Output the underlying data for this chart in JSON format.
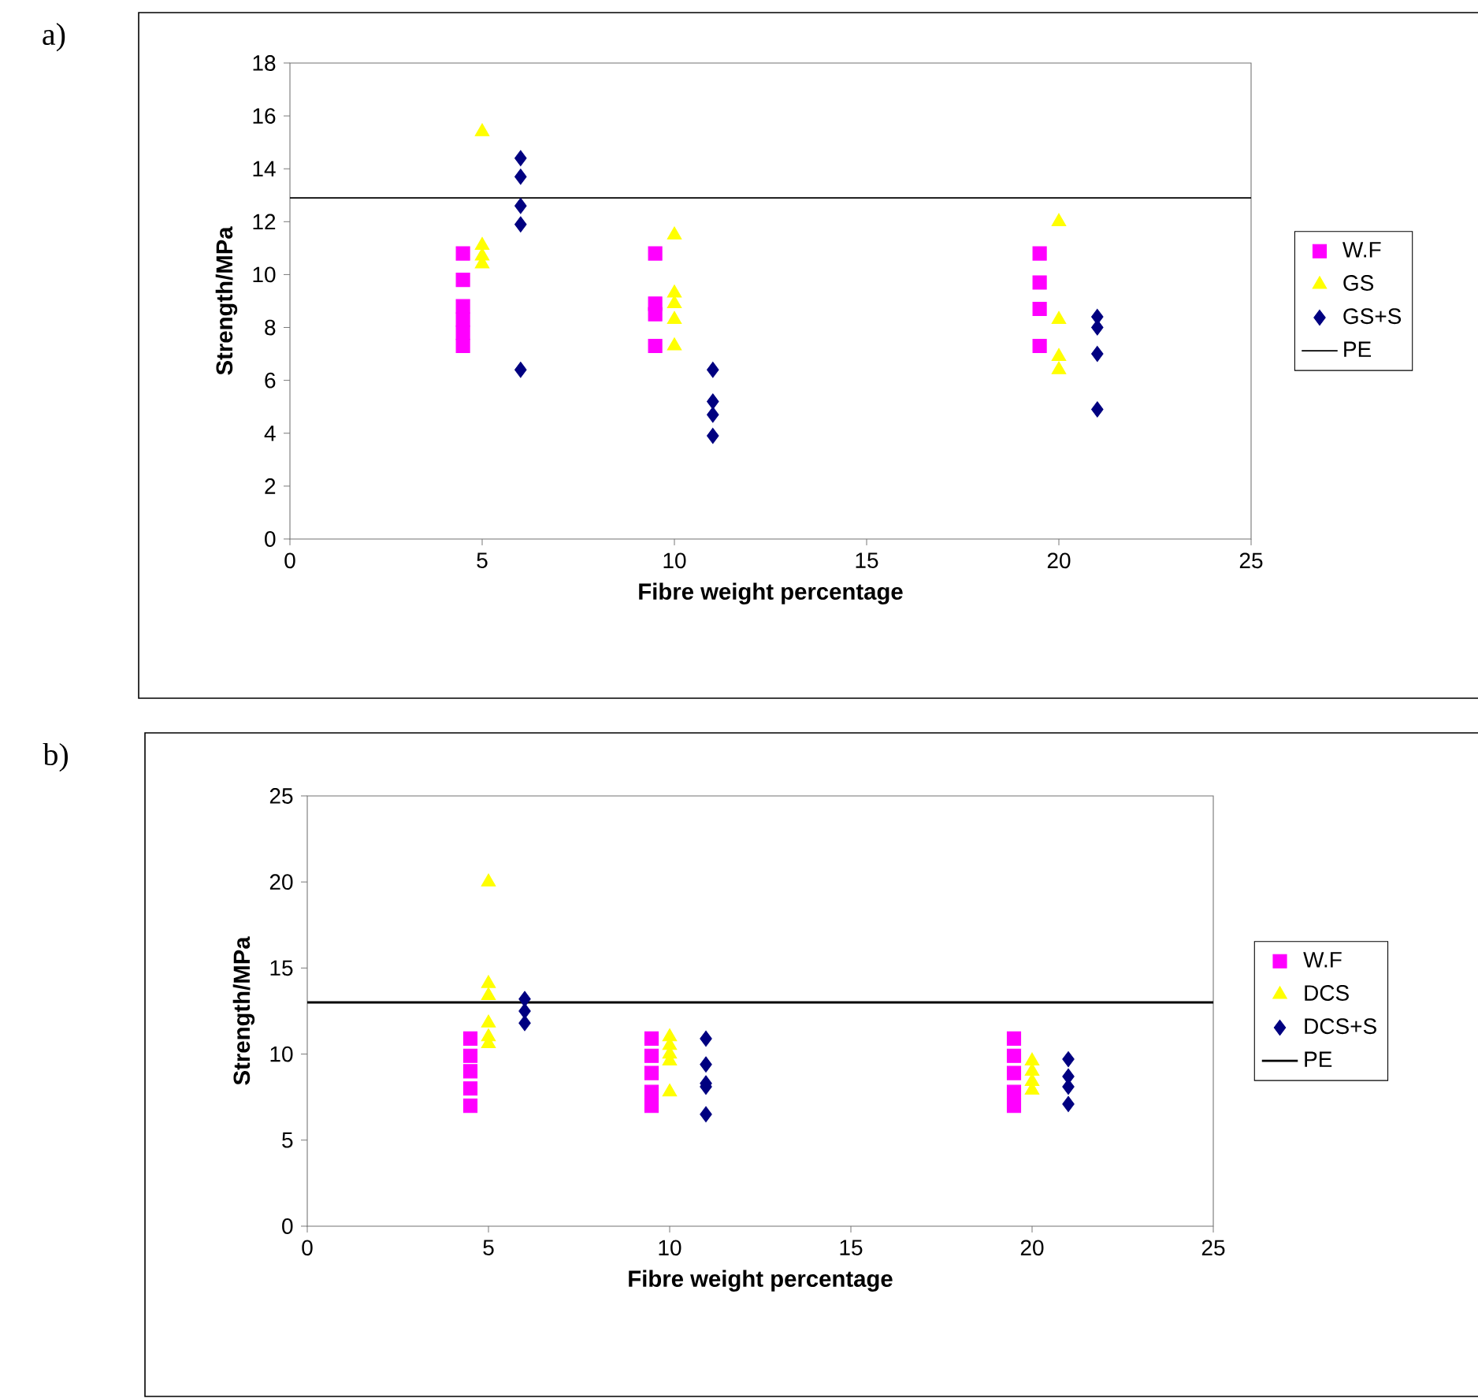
{
  "chart_data": [
    {
      "type": "scatter",
      "xlabel": "Fibre weight percentage",
      "ylabel": "Strength/MPa",
      "annotations": [
        "a)"
      ],
      "xlim": [
        0,
        25
      ],
      "ylim": [
        0,
        18
      ],
      "xticks": [
        0,
        5,
        10,
        15,
        20,
        25
      ],
      "yticks": [
        0,
        2,
        4,
        6,
        8,
        10,
        12,
        14,
        16,
        18
      ],
      "grid": false,
      "legend": "right",
      "series": [
        {
          "name": "W.F",
          "color": "#ff00ff",
          "marker": "square",
          "x": [
            4.5,
            4.5,
            4.5,
            4.5,
            4.5,
            4.5,
            9.5,
            9.5,
            9.5,
            9.5,
            19.5,
            19.5,
            19.5,
            19.5
          ],
          "values": [
            10.8,
            9.8,
            8.8,
            8.3,
            7.8,
            7.3,
            10.8,
            8.9,
            8.5,
            7.3,
            10.8,
            9.7,
            8.7,
            7.3
          ]
        },
        {
          "name": "GS",
          "color": "#ffff00",
          "marker": "triangle",
          "x": [
            5,
            5,
            5,
            5,
            10,
            10,
            10,
            10,
            10,
            20,
            20,
            20,
            20
          ],
          "values": [
            15.4,
            11.1,
            10.7,
            10.4,
            11.5,
            9.3,
            8.9,
            8.3,
            7.3,
            12.0,
            8.3,
            6.9,
            6.4
          ]
        },
        {
          "name": "GS+S",
          "color": "#000080",
          "marker": "diamond",
          "x": [
            6,
            6,
            6,
            6,
            6,
            11,
            11,
            11,
            11,
            21,
            21,
            21,
            21
          ],
          "values": [
            14.4,
            13.7,
            12.6,
            11.9,
            6.4,
            6.4,
            5.2,
            4.7,
            3.9,
            8.4,
            8.0,
            7.0,
            4.9
          ]
        }
      ],
      "ref_lines": [
        {
          "axis": "y",
          "value": 12.9,
          "label": "PE",
          "color": "#000000"
        }
      ]
    },
    {
      "type": "scatter",
      "xlabel": "Fibre weight percentage",
      "ylabel": "Strength/MPa",
      "annotations": [
        "b)"
      ],
      "xlim": [
        0,
        25
      ],
      "ylim": [
        0,
        25
      ],
      "xticks": [
        0,
        5,
        10,
        15,
        20,
        25
      ],
      "yticks": [
        0,
        5,
        10,
        15,
        20,
        25
      ],
      "grid": false,
      "legend": "right",
      "series": [
        {
          "name": "W.F",
          "color": "#ff00ff",
          "marker": "square",
          "x": [
            4.5,
            4.5,
            4.5,
            4.5,
            4.5,
            9.5,
            9.5,
            9.5,
            9.5,
            9.5,
            19.5,
            19.5,
            19.5,
            19.5,
            19.5
          ],
          "values": [
            10.9,
            9.9,
            9.0,
            8.0,
            7.0,
            10.9,
            9.9,
            8.9,
            7.8,
            7.0,
            10.9,
            9.9,
            8.9,
            7.8,
            7.0
          ]
        },
        {
          "name": "DCS",
          "color": "#ffff00",
          "marker": "triangle",
          "x": [
            5,
            5,
            5,
            5,
            5,
            5,
            10,
            10,
            10,
            10,
            10,
            20,
            20,
            20,
            20
          ],
          "values": [
            20.0,
            14.1,
            13.4,
            11.8,
            11.0,
            10.6,
            11.0,
            10.5,
            10.0,
            9.6,
            7.8,
            9.6,
            9.0,
            8.4,
            7.9
          ]
        },
        {
          "name": "DCS+S",
          "color": "#000080",
          "marker": "diamond",
          "x": [
            6,
            6,
            6,
            11,
            11,
            11,
            11,
            11,
            21,
            21,
            21,
            21
          ],
          "values": [
            13.2,
            12.5,
            11.8,
            10.9,
            9.4,
            8.3,
            8.1,
            6.5,
            9.7,
            8.7,
            8.1,
            7.1
          ]
        }
      ],
      "ref_lines": [
        {
          "axis": "y",
          "value": 13,
          "label": "PE",
          "color": "#000000"
        }
      ]
    }
  ]
}
